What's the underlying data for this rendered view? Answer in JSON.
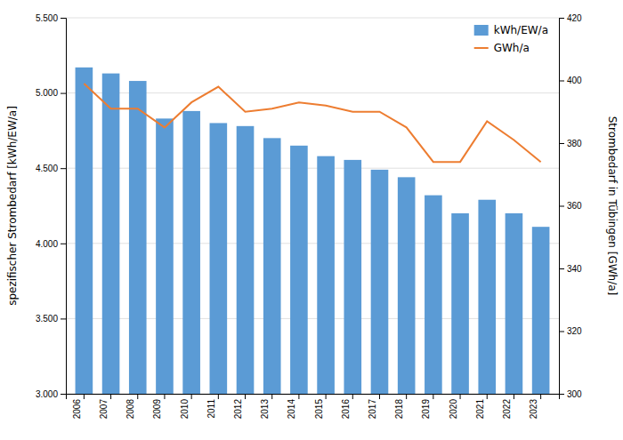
{
  "chart_data": {
    "type": "bar",
    "categories": [
      "2006",
      "2007",
      "2008",
      "2009",
      "2010",
      "2011",
      "2012",
      "2013",
      "2014",
      "2015",
      "2016",
      "2017",
      "2018",
      "2019",
      "2020",
      "2021",
      "2022",
      "2023"
    ],
    "series": [
      {
        "name": "kWh/EW/a",
        "type": "bar",
        "color": "#5B9BD5",
        "values": [
          5170,
          5130,
          5080,
          4830,
          4880,
          4800,
          4780,
          4700,
          4650,
          4580,
          4555,
          4490,
          4440,
          4320,
          4200,
          4290,
          4200,
          4110
        ]
      },
      {
        "name": "GWh/a",
        "type": "line",
        "axis": "y2",
        "color": "#ED7D31",
        "values": [
          399,
          391,
          391,
          385,
          393,
          398,
          390,
          391,
          393,
          392,
          390,
          390,
          385,
          374,
          374,
          387,
          381,
          374
        ]
      }
    ],
    "ylabel": "spezifischer Strombedarf [kWh/EW/a]",
    "y2label": "Strombedarf in Tübingen [GWh/a]",
    "ylim": [
      3000,
      5500
    ],
    "yticks": [
      {
        "value": 3000,
        "label": "3.000"
      },
      {
        "value": 3500,
        "label": "3.500"
      },
      {
        "value": 4000,
        "label": "4.000"
      },
      {
        "value": 4500,
        "label": "4.500"
      },
      {
        "value": 5000,
        "label": "5.000"
      },
      {
        "value": 5500,
        "label": "5.500"
      }
    ],
    "y2lim": [
      300,
      420
    ],
    "y2ticks": [
      300,
      320,
      340,
      360,
      380,
      400,
      420
    ],
    "grid": true,
    "legend": "upper-right"
  }
}
